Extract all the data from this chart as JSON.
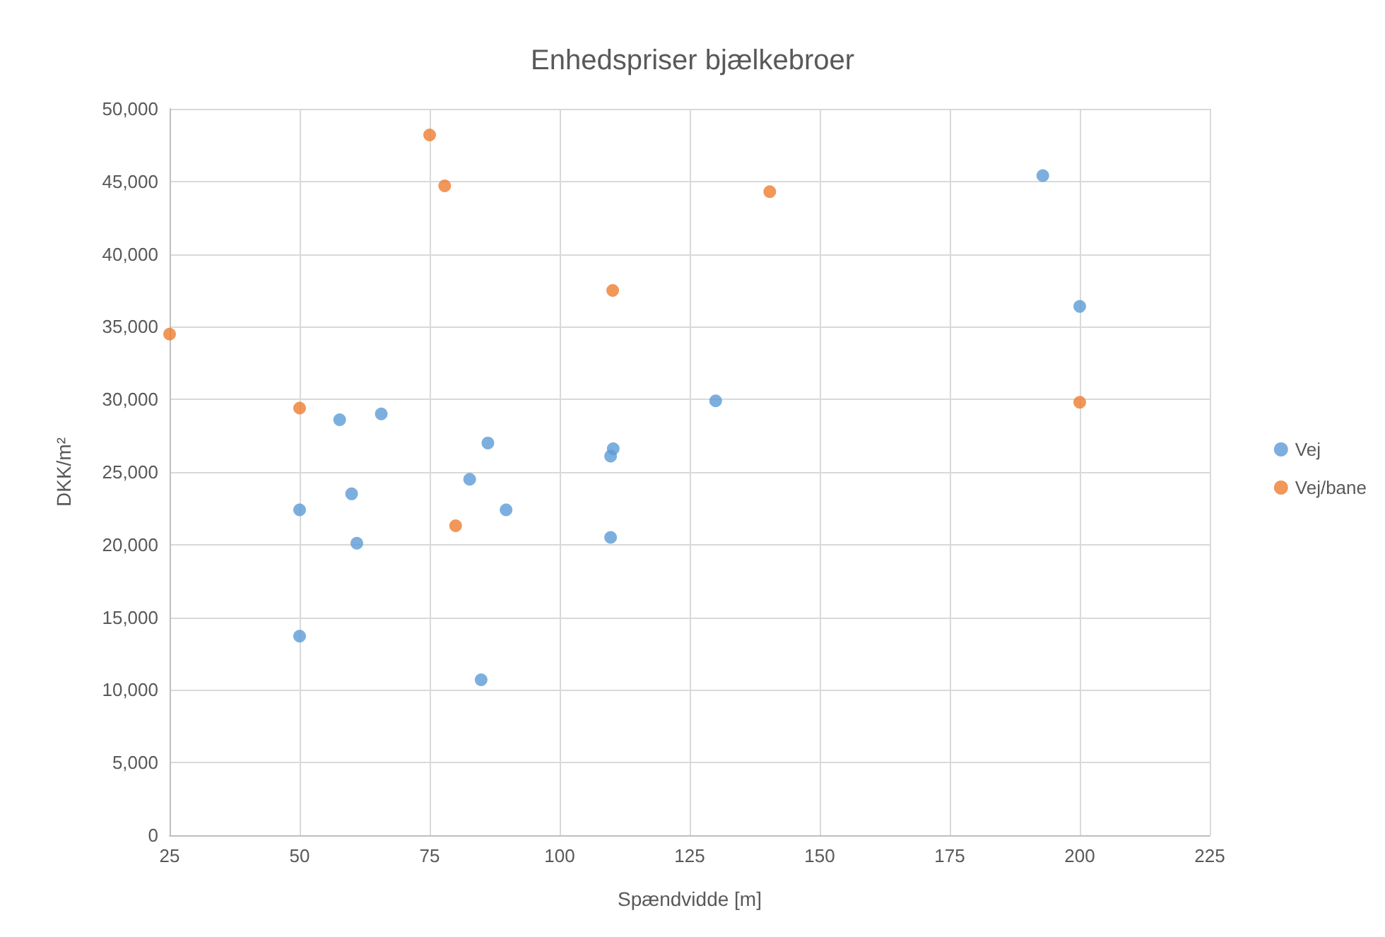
{
  "chart_data": {
    "type": "scatter",
    "title": "Enhedspriser bjælkebroer",
    "xlabel": "Spændvidde [m]",
    "ylabel": "DKK/m²",
    "series": [
      {
        "name": "Vej",
        "color": "#5b9bd5",
        "x": [
          192.9,
          200,
          130,
          110.3,
          109.8,
          109.8,
          86.2,
          82.7,
          89.7,
          84.9,
          65.7,
          57.7,
          60,
          61,
          50,
          50
        ],
        "values": [
          45400,
          36400,
          29900,
          26600,
          26100,
          20500,
          27000,
          24500,
          22400,
          10700,
          29000,
          28600,
          23500,
          20100,
          22400,
          13700
        ]
      },
      {
        "name": "Vej/bane",
        "color": "#ed7d31",
        "x": [
          25,
          50,
          75,
          77.9,
          80,
          110.2,
          140.4,
          200
        ],
        "values": [
          34500,
          29400,
          48200,
          44700,
          21300,
          37500,
          44300,
          29800
        ]
      }
    ],
    "xlim": [
      25,
      225
    ],
    "xticks": [
      25,
      50,
      75,
      100,
      125,
      150,
      175,
      200,
      225
    ],
    "ylim": [
      0,
      50000
    ],
    "yticks": [
      {
        "value": 0,
        "label": "0"
      },
      {
        "value": 5000,
        "label": "5,000"
      },
      {
        "value": 10000,
        "label": "10,000"
      },
      {
        "value": 15000,
        "label": "15,000"
      },
      {
        "value": 20000,
        "label": "20,000"
      },
      {
        "value": 25000,
        "label": "25,000"
      },
      {
        "value": 30000,
        "label": "30,000"
      },
      {
        "value": 35000,
        "label": "35,000"
      },
      {
        "value": 40000,
        "label": "40,000"
      },
      {
        "value": 45000,
        "label": "45,000"
      },
      {
        "value": 50000,
        "label": "50,000"
      }
    ],
    "grid": true,
    "legend": "right",
    "marker": "circle"
  }
}
